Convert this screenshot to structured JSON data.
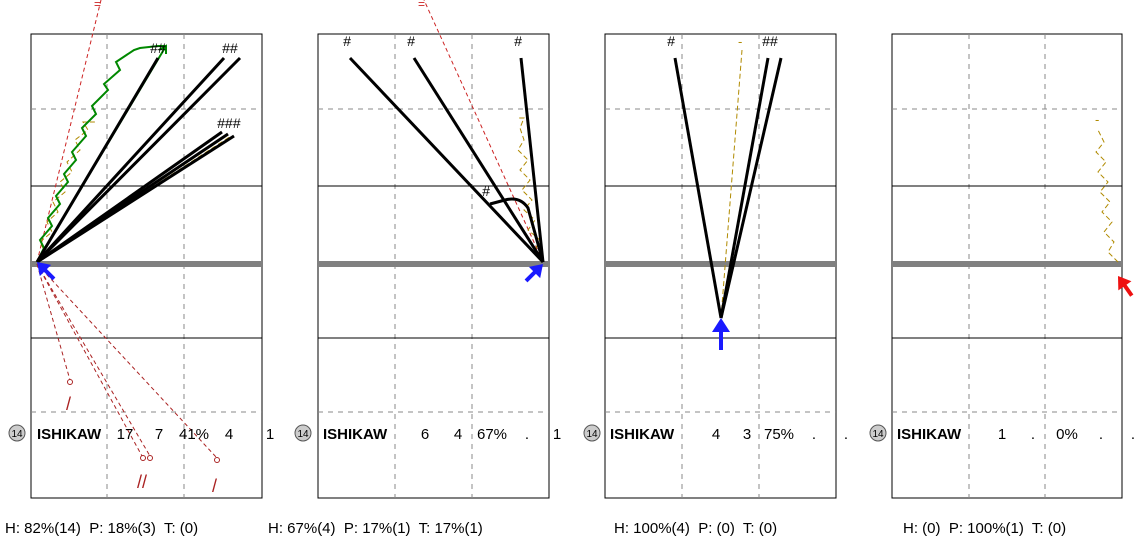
{
  "panels": [
    {
      "jersey": "14",
      "player": "ISHIKAW",
      "stats": [
        "17",
        "7",
        "41%",
        "4",
        "1"
      ],
      "summary": "H: 82%(14)  P: 18%(3)  T: (0)",
      "arrow": {
        "color": "#1a1aff",
        "direction": "up-left"
      },
      "top_marks": [
        {
          "text": "="
        },
        {
          "text": "##"
        },
        {
          "text": "##"
        },
        {
          "text": "###"
        }
      ],
      "bottom_marks": [
        {
          "text": "/"
        },
        {
          "text": "//"
        },
        {
          "text": "/"
        }
      ]
    },
    {
      "jersey": "14",
      "player": "ISHIKAW",
      "stats": [
        "6",
        "4",
        "67%",
        ".",
        "1"
      ],
      "summary": "H: 67%(4)  P: 17%(1)  T: 17%(1)",
      "arrow": {
        "color": "#1a1aff",
        "direction": "up-right"
      },
      "top_marks": [
        {
          "text": "="
        },
        {
          "text": "#"
        },
        {
          "text": "#"
        },
        {
          "text": "#"
        },
        {
          "text": "#"
        }
      ],
      "bottom_marks": []
    },
    {
      "jersey": "14",
      "player": "ISHIKAW",
      "stats": [
        "4",
        "3",
        "75%",
        ".",
        "."
      ],
      "summary": "H: 100%(4)  P: (0)  T: (0)",
      "arrow": {
        "color": "#1a1aff",
        "direction": "up"
      },
      "top_marks": [
        {
          "text": "#"
        },
        {
          "text": "-"
        },
        {
          "text": "##"
        }
      ],
      "bottom_marks": []
    },
    {
      "jersey": "14",
      "player": "ISHIKAW",
      "stats": [
        "1",
        ".",
        "0%",
        ".",
        "."
      ],
      "summary": "H: (0)  P: 100%(1)  T: (0)",
      "arrow": {
        "color": "#ee1111",
        "direction": "up-right"
      },
      "top_marks": [
        {
          "text": "-"
        }
      ],
      "bottom_marks": []
    }
  ],
  "colors": {
    "frame": "#000000",
    "grid": "#888888",
    "baseline": "#808080",
    "shot": "#000000",
    "pass": "#008800",
    "dribble": "#bb8800",
    "miss": "#aa2222",
    "jersey_badge": "#cccccc"
  }
}
